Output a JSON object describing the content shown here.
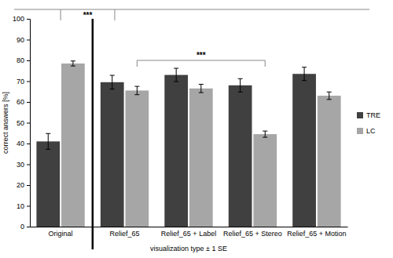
{
  "chart_data": {
    "type": "bar",
    "x_label": "visualization type ± 1 SE",
    "y_label": "correct answers [%]",
    "categories": [
      "Original",
      "Relief_65",
      "Relief_65 + Label",
      "Relief_65 + Stereo",
      "Relief_65 + Motion"
    ],
    "series": [
      {
        "name": "TRE",
        "color": "#404040",
        "values": [
          41,
          69.5,
          73,
          68,
          73.5
        ],
        "errors": [
          3.8,
          3.3,
          3.2,
          3.2,
          3.2
        ]
      },
      {
        "name": "LC",
        "color": "#a6a6a6",
        "values": [
          78.5,
          65.5,
          66.5,
          44.5,
          63
        ],
        "errors": [
          1.2,
          2,
          2,
          1.5,
          1.8
        ]
      }
    ],
    "ylim": [
      0,
      100
    ],
    "yticks": [
      0,
      10,
      20,
      30,
      40,
      50,
      60,
      70,
      80,
      90,
      100
    ],
    "legend": "right",
    "annotations": [
      "***",
      "***"
    ]
  }
}
